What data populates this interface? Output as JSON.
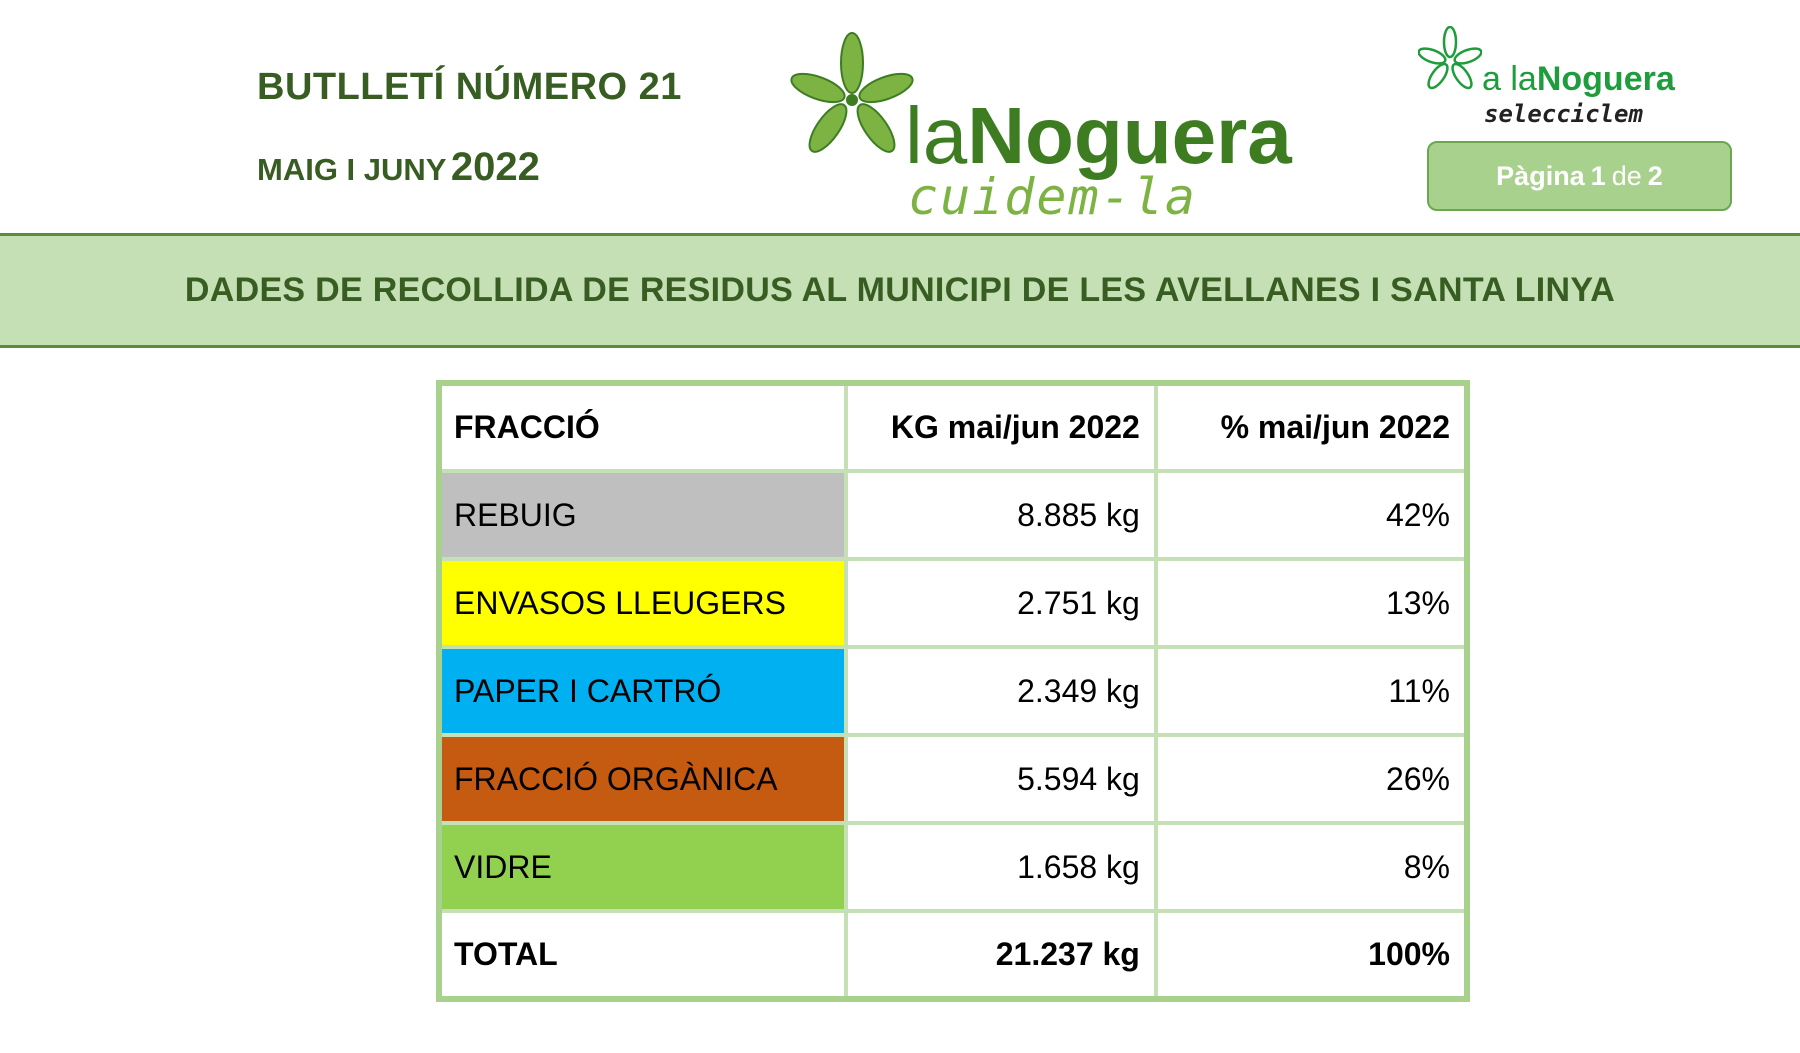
{
  "header": {
    "bulletin_title": "BUTLLETÍ NÚMERO 21",
    "period_months": "MAIG I JUNY",
    "period_year": "2022"
  },
  "logo_main": {
    "word_light": "la",
    "word_bold": "Noguera",
    "tagline": "cuidem-la"
  },
  "logo_small": {
    "word_light": "a la",
    "word_bold": "Noguera",
    "tagline": "selecciclem"
  },
  "page_indicator": {
    "word": "Pàgina",
    "current": "1",
    "of": "de",
    "total": "2"
  },
  "banner": {
    "title": "DADES DE RECOLLIDA DE RESIDUS AL MUNICIPI DE LES AVELLANES I SANTA LINYA"
  },
  "table": {
    "headers": [
      "FRACCIÓ",
      "KG mai/jun 2022",
      "% mai/jun 2022"
    ],
    "rows": [
      {
        "fraction": "REBUIG",
        "kg": "8.885 kg",
        "pct": "42%",
        "color": "#bfbfbf"
      },
      {
        "fraction": "ENVASOS LLEUGERS",
        "kg": "2.751 kg",
        "pct": "13%",
        "color": "#ffff00"
      },
      {
        "fraction": "PAPER I CARTRÓ",
        "kg": "2.349 kg",
        "pct": "11%",
        "color": "#00b0f0"
      },
      {
        "fraction": "FRACCIÓ ORGÀNICA",
        "kg": "5.594 kg",
        "pct": "26%",
        "color": "#c55a11"
      },
      {
        "fraction": "VIDRE",
        "kg": "1.658 kg",
        "pct": "8%",
        "color": "#92d050"
      }
    ],
    "total": {
      "label": "TOTAL",
      "kg": "21.237 kg",
      "pct": "100%"
    }
  },
  "colors": {
    "brand_green": "#385d22",
    "banner_bg": "#c5e0b4",
    "badge_bg": "#a9d18e"
  }
}
